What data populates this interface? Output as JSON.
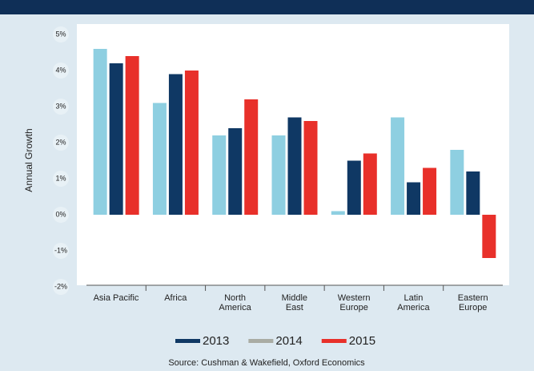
{
  "chart_data": {
    "type": "bar",
    "y_label": "Annual Growth",
    "source": "Source: Cushman & Wakefield, Oxford Economics",
    "categories": [
      "Asia Pacific",
      "Africa",
      "North\nAmerica",
      "Middle\nEast",
      "Western\nEurope",
      "Latin\nAmerica",
      "Eastern\nEurope"
    ],
    "series": [
      {
        "name": "2014",
        "color": "#8ecfe1",
        "legend_color": "#a9aca4",
        "values": [
          4.6,
          3.1,
          2.2,
          2.2,
          0.1,
          2.7,
          1.8
        ]
      },
      {
        "name": "2013",
        "color": "#0f3864",
        "values": [
          4.2,
          3.9,
          2.4,
          2.7,
          1.5,
          0.9,
          1.2
        ]
      },
      {
        "name": "2015",
        "color": "#e8302a",
        "values": [
          4.4,
          4.0,
          3.2,
          2.6,
          1.7,
          1.3,
          -1.2
        ]
      }
    ],
    "legend_order": [
      1,
      0,
      2
    ],
    "ylim": [
      -2,
      5
    ],
    "yticks": [
      {
        "value": -2,
        "label": "-2%"
      },
      {
        "value": -1,
        "label": "-1%"
      },
      {
        "value": 0,
        "label": "0%"
      },
      {
        "value": 1,
        "label": "1%"
      },
      {
        "value": 2,
        "label": "2%"
      },
      {
        "value": 3,
        "label": "3%"
      },
      {
        "value": 4,
        "label": "4%"
      },
      {
        "value": 5,
        "label": "5%"
      }
    ],
    "grid": false
  }
}
